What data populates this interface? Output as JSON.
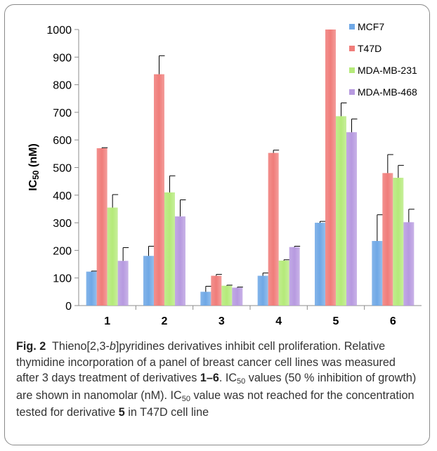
{
  "chart_data": {
    "type": "bar",
    "categories": [
      "1",
      "2",
      "3",
      "4",
      "5",
      "6"
    ],
    "ylabel_main": "IC",
    "ylabel_sub": "50",
    "ylabel_unit": " (nM)",
    "ylim": [
      0,
      1000
    ],
    "yticks": [
      0,
      100,
      200,
      300,
      400,
      500,
      600,
      700,
      800,
      900,
      1000
    ],
    "legend_position": "top-right",
    "series": [
      {
        "name": "MCF7",
        "color": "#6fa8e6",
        "values": [
          123,
          180,
          50,
          108,
          300,
          234
        ],
        "errors": [
          2,
          35,
          20,
          10,
          5,
          95
        ]
      },
      {
        "name": "T47D",
        "color": "#f07d7a",
        "values": [
          570,
          838,
          108,
          553,
          1000,
          480
        ],
        "errors": [
          2,
          67,
          5,
          10,
          0,
          67
        ]
      },
      {
        "name": "MDA-MB-231",
        "color": "#b5ea7a",
        "values": [
          355,
          410,
          72,
          163,
          686,
          463
        ],
        "errors": [
          47,
          60,
          2,
          3,
          48,
          45
        ]
      },
      {
        "name": "MDA-MB-468",
        "color": "#b79ae0",
        "values": [
          162,
          323,
          65,
          212,
          628,
          302
        ],
        "errors": [
          48,
          60,
          2,
          3,
          48,
          47
        ]
      }
    ]
  },
  "caption": {
    "fig_label": "Fig. 2",
    "title_a": "Thieno[2,3-",
    "title_italic": "b",
    "title_b": "]pyridines derivatives inhibit cell proliferation.",
    "line_a": "Relative thymidine incorporation of a panel of breast cancer cell lines was measured after 3 days treatment of derivatives ",
    "deriv_range": "1–6",
    "ic_text": ". IC",
    "ic_sub": "50",
    "line_b": " values (50 % inhibition of growth) are shown in nanomolar (nM). IC",
    "ic_sub2": "50",
    "line_c": " value was not reached for the concentration tested for derivative ",
    "deriv_5": "5",
    "line_d": " in T47D cell line"
  }
}
